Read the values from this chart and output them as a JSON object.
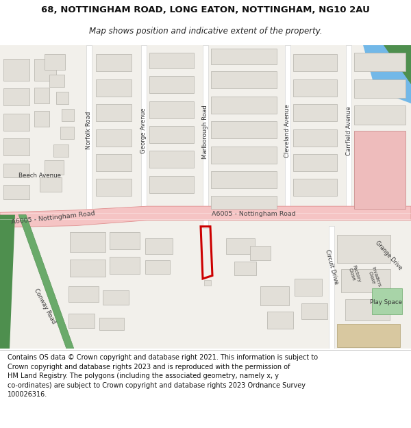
{
  "title_line1": "68, NOTTINGHAM ROAD, LONG EATON, NOTTINGHAM, NG10 2AU",
  "title_line2": "Map shows position and indicative extent of the property.",
  "footer_text": "Contains OS data © Crown copyright and database right 2021. This information is subject to Crown copyright and database rights 2023 and is reproduced with the permission of HM Land Registry. The polygons (including the associated geometry, namely x, y co-ordinates) are subject to Crown copyright and database rights 2023 Ordnance Survey 100026316.",
  "bg_color": "#ffffff",
  "map_bg": "#f2f0eb",
  "road_main_color": "#f5c4c4",
  "road_main_outline": "#e09090",
  "road_minor_color": "#ffffff",
  "road_minor_outline": "#cccccc",
  "building_color": "#e2dfd8",
  "building_outline": "#b5b2ab",
  "green_dark": "#4e8f4e",
  "green_mid": "#6aaa6a",
  "green_light": "#a8d4a8",
  "blue_color": "#72b8e8",
  "red_polygon": "#cc0000",
  "pink_building": "#eebcbc",
  "pink_outline": "#cc9090",
  "tan_color": "#d8c8a0",
  "tan_outline": "#b0a070",
  "label_color": "#333333",
  "road_label_color": "#444444"
}
